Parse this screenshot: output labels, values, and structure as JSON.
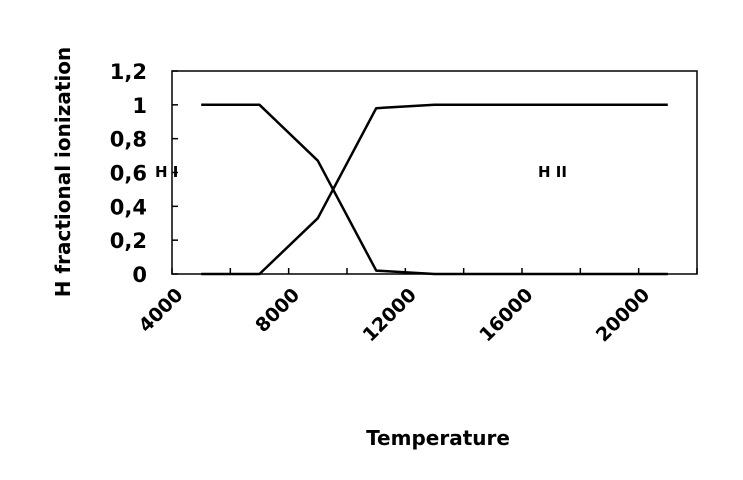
{
  "chart_data": {
    "type": "line",
    "title": "",
    "xlabel": "Temperature",
    "ylabel": "H fractional ionization",
    "x_ticks": [
      "4000",
      "8000",
      "12000",
      "16000",
      "20000"
    ],
    "y_ticks": [
      "0",
      "0,2",
      "0,4",
      "0,6",
      "0,8",
      "1",
      "1,2"
    ],
    "xlim": [
      4000,
      22000
    ],
    "ylim": [
      0,
      1.2
    ],
    "grid": false,
    "series": [
      {
        "x": [
          5000,
          7000,
          9000,
          11000,
          13000,
          15000,
          17000,
          19000,
          21000
        ],
        "values": [
          1.0,
          1.0,
          0.67,
          0.02,
          0.0,
          0.0,
          0.0,
          0.0,
          0.0
        ],
        "color": "#000000"
      },
      {
        "x": [
          5000,
          7000,
          9000,
          11000,
          13000,
          15000,
          17000,
          19000,
          21000
        ],
        "values": [
          0.0,
          0.0,
          0.33,
          0.98,
          1.0,
          1.0,
          1.0,
          1.0,
          1.0
        ],
        "color": "#000000"
      }
    ],
    "annotations": [
      "H I",
      "H II"
    ]
  }
}
